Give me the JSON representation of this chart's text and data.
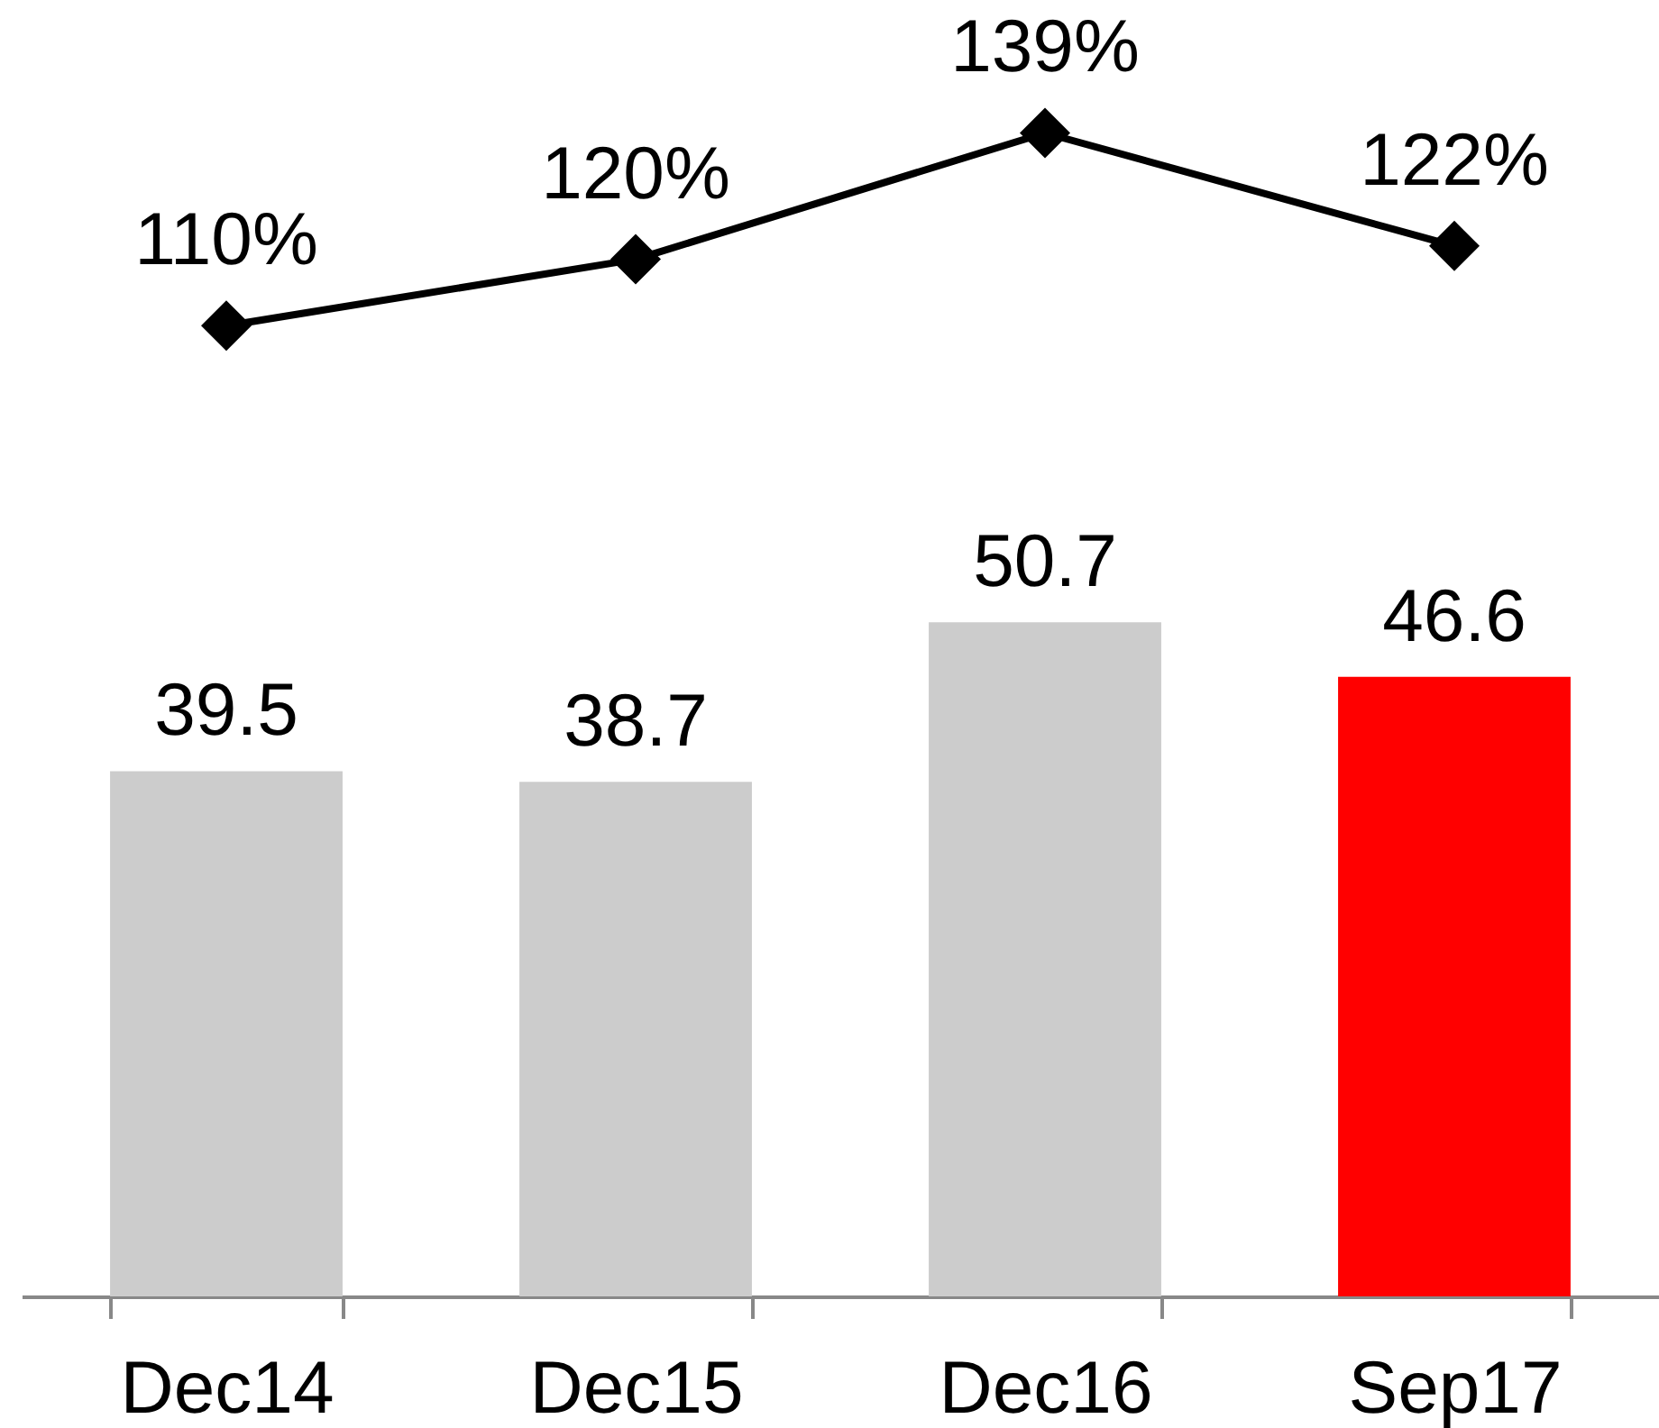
{
  "chart_data": {
    "type": "bar",
    "categories": [
      "Dec14",
      "Dec15",
      "Dec16",
      "Sep17"
    ],
    "series": [
      {
        "colors": [
          "#cccccc",
          "#cccccc",
          "#cccccc",
          "#ff0000"
        ],
        "values": [
          39.5,
          38.7,
          50.7,
          46.6
        ],
        "value_labels": [
          "39.5",
          "38.7",
          "50.7",
          "46.6"
        ]
      },
      {
        "type": "line",
        "axis": "y2",
        "color": "#000000",
        "values": [
          110,
          120,
          139,
          122
        ],
        "value_labels": [
          "110%",
          "120%",
          "139%",
          "122%"
        ]
      }
    ],
    "ylim": [
      0,
      97.5
    ],
    "y2lim": [
      -36,
      159
    ],
    "tick_labels": "x",
    "marker": "diamond"
  }
}
